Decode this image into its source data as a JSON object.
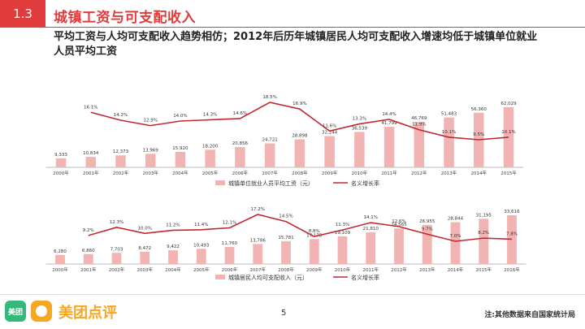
{
  "header": {
    "section_number": "1.3",
    "title": "城镇工资与可支配收入",
    "subtitle": "平均工资与人均可支配收入趋势相仿；2012年后历年城镇居民人均可支配收入增速均低于城镇单位就业人员平均工资"
  },
  "colors": {
    "accent": "#e03c3c",
    "bar": "#f2b3b3",
    "line": "#c0292f"
  },
  "chart_data": [
    {
      "type": "bar",
      "title": "",
      "categories": [
        "2000年",
        "2001年",
        "2002年",
        "2003年",
        "2004年",
        "2005年",
        "2006年",
        "2007年",
        "2008年",
        "2009年",
        "2010年",
        "2011年",
        "2012年",
        "2013年",
        "2014年",
        "2015年"
      ],
      "value_labels": [
        "9,333",
        "10,834",
        "12,373",
        "13,969",
        "15,920",
        "18,200",
        "20,856",
        "24,721",
        "28,898",
        "32,244",
        "36,539",
        "41,799",
        "46,769",
        "51,483",
        "56,360",
        "62,029"
      ],
      "values": [
        9333,
        10834,
        12373,
        13969,
        15920,
        18200,
        20856,
        24721,
        28898,
        32244,
        36539,
        41799,
        46769,
        51483,
        56360,
        62029
      ],
      "series": [
        {
          "name": "城镇单位就业人员平均工资（元）",
          "kind": "bar",
          "values": [
            9333,
            10834,
            12373,
            13969,
            15920,
            18200,
            20856,
            24721,
            28898,
            32244,
            36539,
            41799,
            46769,
            51483,
            56360,
            62029
          ]
        },
        {
          "name": "名义增长率",
          "kind": "line",
          "unit": "%",
          "values": [
            null,
            16.1,
            14.2,
            12.9,
            14.0,
            14.3,
            14.6,
            18.5,
            16.9,
            11.6,
            13.3,
            14.4,
            11.9,
            10.1,
            9.5,
            10.1
          ],
          "labels": [
            "",
            "16.1%",
            "14.2%",
            "12.9%",
            "14.0%",
            "14.3%",
            "14.6%",
            "18.5%",
            "16.9%",
            "11.6%",
            "13.3%",
            "14.4%",
            "11.9%",
            "10.1%",
            "9.5%",
            "10.1%"
          ]
        }
      ],
      "legend": [
        "城镇单位就业人员平均工资（元）",
        "名义增长率"
      ],
      "legend_position": "bottom"
    },
    {
      "type": "bar",
      "title": "",
      "categories": [
        "2000年",
        "2001年",
        "2002年",
        "2003年",
        "2004年",
        "2005年",
        "2006年",
        "2007年",
        "2008年",
        "2009年",
        "2010年",
        "2011年",
        "2012年",
        "2013年",
        "2014年",
        "2015年",
        "2016年"
      ],
      "value_labels": [
        "6,280",
        "6,860",
        "7,703",
        "8,472",
        "9,422",
        "10,493",
        "11,760",
        "13,786",
        "15,781",
        "17,175",
        "19,109",
        "21,810",
        "24,565",
        "26,955",
        "28,844",
        "31,195",
        "33,616"
      ],
      "values": [
        6280,
        6860,
        7703,
        8472,
        9422,
        10493,
        11760,
        13786,
        15781,
        17175,
        19109,
        21810,
        24565,
        26955,
        28844,
        31195,
        33616
      ],
      "series": [
        {
          "name": "城镇居民人均可支配收入（元）",
          "kind": "bar",
          "values": [
            6280,
            6860,
            7703,
            8472,
            9422,
            10493,
            11760,
            13786,
            15781,
            17175,
            19109,
            21810,
            24565,
            26955,
            28844,
            31195,
            33616
          ]
        },
        {
          "name": "名义增长率",
          "kind": "line",
          "unit": "%",
          "values": [
            null,
            9.2,
            12.3,
            10.0,
            11.2,
            11.4,
            12.1,
            17.2,
            14.5,
            8.8,
            11.3,
            14.1,
            12.6,
            9.7,
            7.0,
            8.2,
            7.8
          ],
          "labels": [
            "",
            "9.2%",
            "12.3%",
            "10.0%",
            "11.2%",
            "11.4%",
            "12.1%",
            "17.2%",
            "14.5%",
            "8.8%",
            "11.3%",
            "14.1%",
            "12.6%",
            "9.7%",
            "7.0%",
            "8.2%",
            "7.8%"
          ]
        }
      ],
      "legend": [
        "城镇居民人均可支配收入（元）",
        "名义增长率"
      ],
      "legend_position": "bottom"
    }
  ],
  "footer": {
    "logo_badge_text": "美团",
    "logo_text": "美团点评",
    "page_number": "5",
    "note": "注:其他数据来自国家统计局"
  }
}
